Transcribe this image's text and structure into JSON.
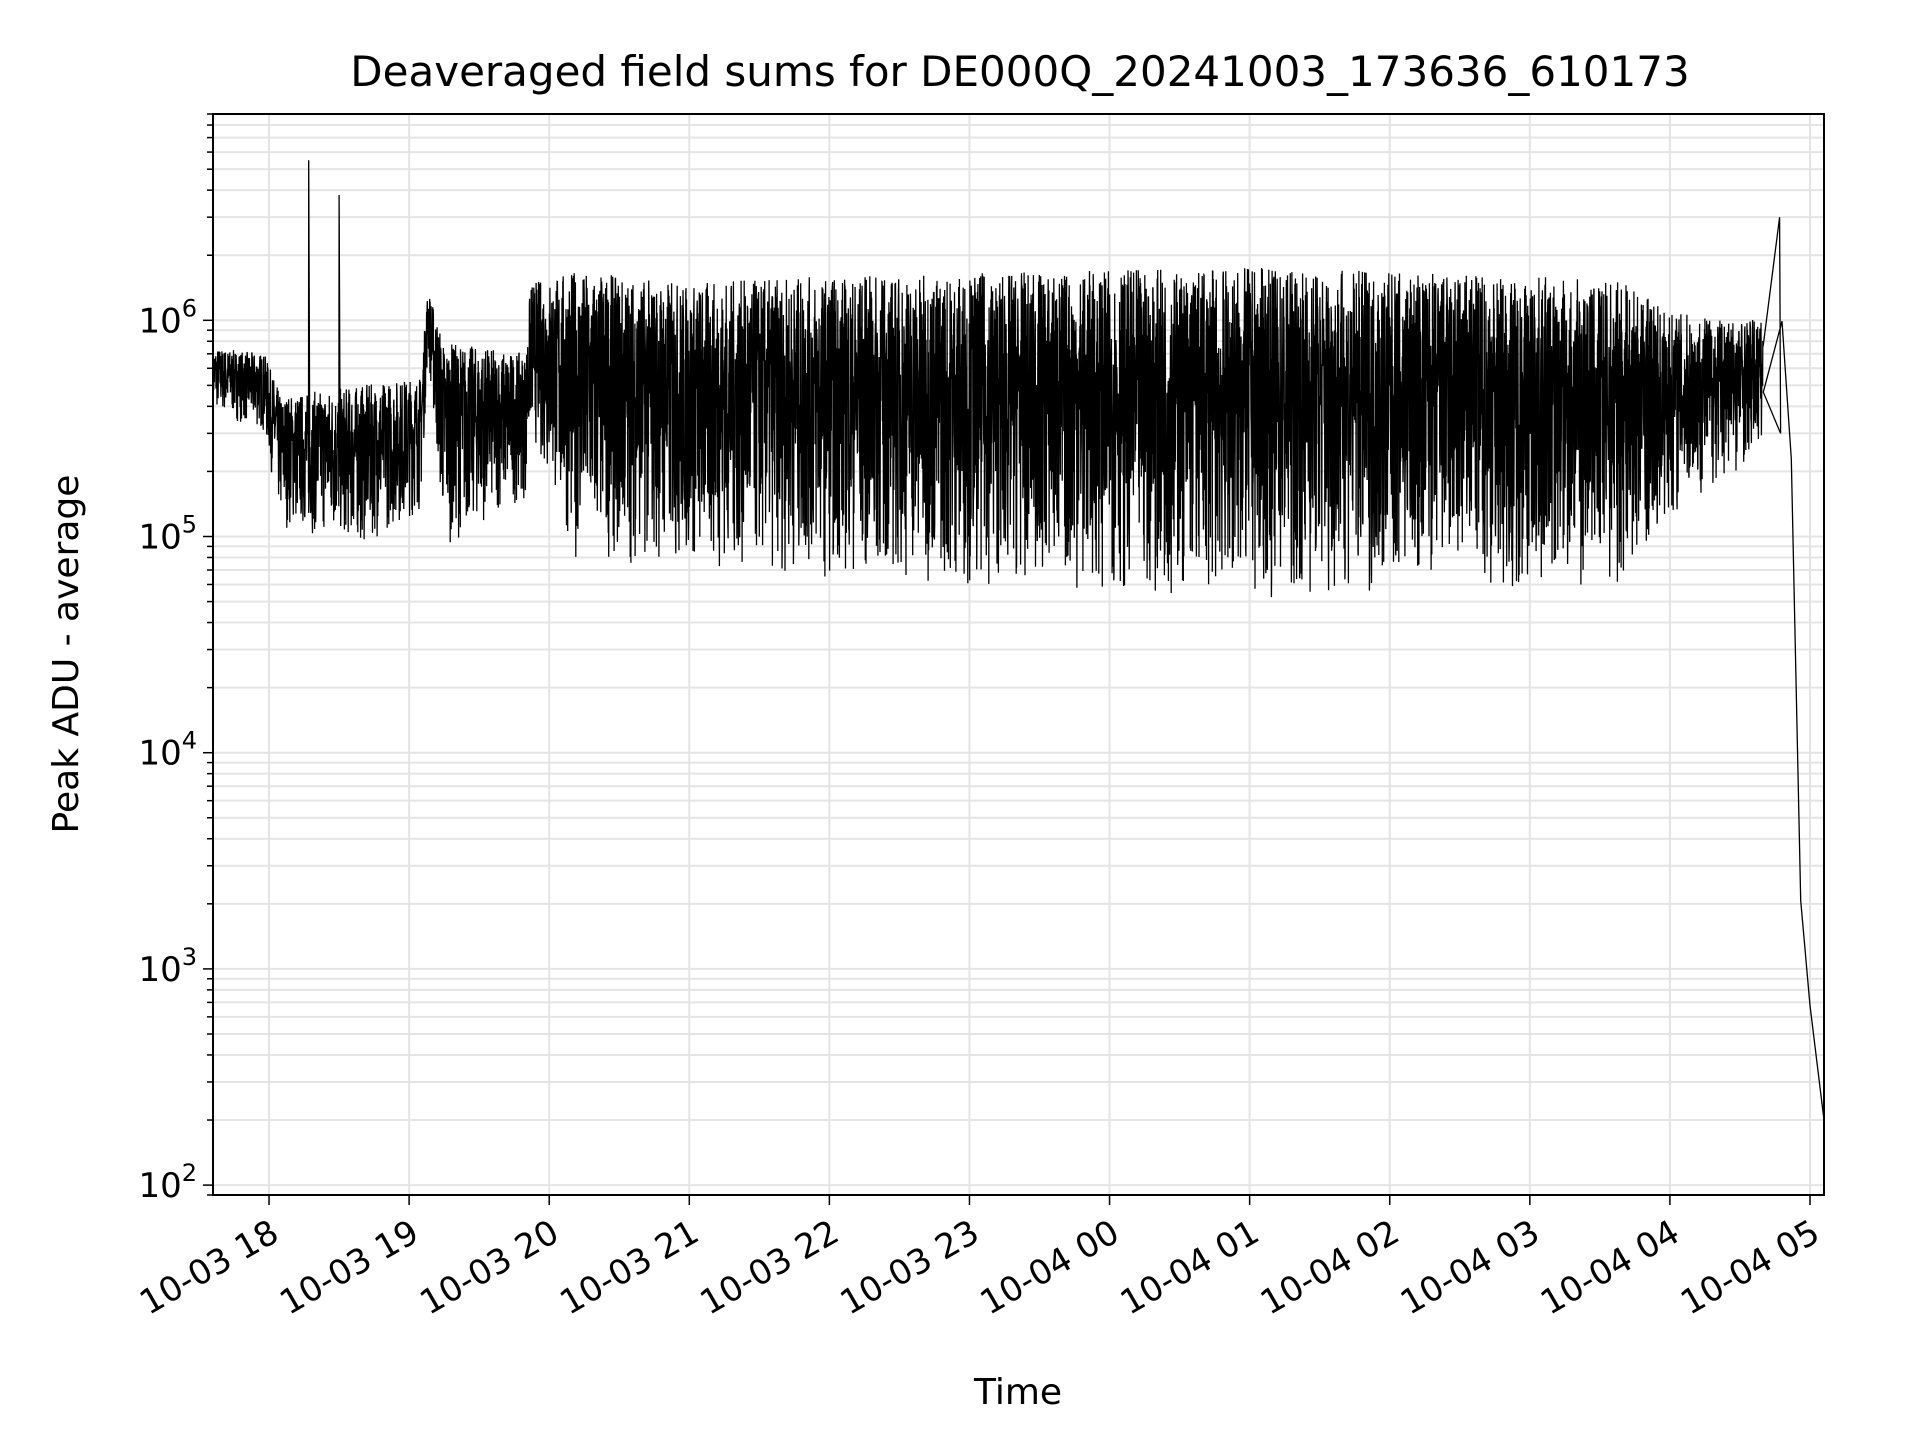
{
  "chart_data": {
    "type": "line",
    "title": "Deaveraged field sums for DE000Q_20241003_173636_610173",
    "xlabel": "Time",
    "ylabel": "Peak ADU - average",
    "x_axis": {
      "type": "datetime",
      "range": [
        "2024-10-03 17:36",
        "2024-10-04 05:06"
      ],
      "ticks": [
        "10-03 18",
        "10-03 19",
        "10-03 20",
        "10-03 21",
        "10-03 22",
        "10-03 23",
        "10-04 00",
        "10-04 01",
        "10-04 02",
        "10-04 03",
        "10-04 04",
        "10-04 05"
      ]
    },
    "y_axis": {
      "scale": "log",
      "range": [
        90,
        9000000
      ],
      "ticks": [
        {
          "base": "10",
          "exp": "2"
        },
        {
          "base": "10",
          "exp": "3"
        },
        {
          "base": "10",
          "exp": "4"
        },
        {
          "base": "10",
          "exp": "5"
        },
        {
          "base": "10",
          "exp": "6"
        }
      ]
    },
    "grid": true,
    "line_color": "#000000",
    "series": [
      {
        "x": [
          "2024-10-03 17:36",
          "2024-10-03 17:55",
          "2024-10-03 18:00",
          "2024-10-03 18:20",
          "2024-10-03 18:40",
          "2024-10-03 19:00",
          "2024-10-03 19:08",
          "2024-10-03 19:30",
          "2024-10-03 19:50",
          "2024-10-03 20:00",
          "2024-10-03 20:30",
          "2024-10-03 21:00",
          "2024-10-03 22:00",
          "2024-10-03 23:00",
          "2024-10-04 00:00",
          "2024-10-04 01:00",
          "2024-10-04 02:00",
          "2024-10-04 03:00",
          "2024-10-04 04:00",
          "2024-10-04 04:40",
          "2024-10-04 04:48",
          "2024-10-04 04:52",
          "2024-10-04 04:56",
          "2024-10-04 05:00",
          "2024-10-04 05:06"
        ],
        "y": [
          500000,
          600000,
          300000,
          220000,
          250000,
          320000,
          1000000,
          500000,
          450000,
          1000000,
          1000000,
          700000,
          600000,
          450000,
          400000,
          380000,
          350000,
          360000,
          400000,
          800000,
          1000000,
          200000,
          2000,
          700,
          200
        ]
      }
    ],
    "spikes": [
      {
        "x": "2024-10-03 18:17",
        "y": 5500000
      },
      {
        "x": "2024-10-03 18:30",
        "y": 3800000
      },
      {
        "x": "2024-10-04 04:47",
        "y": 3000000
      }
    ],
    "oscillation_band": [
      {
        "x": "2024-10-03 17:36",
        "low": 380000,
        "high": 750000
      },
      {
        "x": "2024-10-03 17:58",
        "low": 300000,
        "high": 700000
      },
      {
        "x": "2024-10-03 18:05",
        "low": 110000,
        "high": 450000
      },
      {
        "x": "2024-10-03 18:40",
        "low": 90000,
        "high": 500000
      },
      {
        "x": "2024-10-03 19:05",
        "low": 130000,
        "high": 550000
      },
      {
        "x": "2024-10-03 19:08",
        "low": 700000,
        "high": 1400000
      },
      {
        "x": "2024-10-03 19:15",
        "low": 90000,
        "high": 800000
      },
      {
        "x": "2024-10-03 19:50",
        "low": 150000,
        "high": 700000
      },
      {
        "x": "2024-10-03 19:52",
        "low": 300000,
        "high": 1500000
      },
      {
        "x": "2024-10-03 20:10",
        "low": 80000,
        "high": 1700000
      },
      {
        "x": "2024-10-03 21:00",
        "low": 70000,
        "high": 1500000
      },
      {
        "x": "2024-10-03 22:00",
        "low": 65000,
        "high": 1600000
      },
      {
        "x": "2024-10-03 23:00",
        "low": 60000,
        "high": 1650000
      },
      {
        "x": "2024-10-04 00:00",
        "low": 55000,
        "high": 1700000
      },
      {
        "x": "2024-10-04 01:00",
        "low": 52000,
        "high": 1750000
      },
      {
        "x": "2024-10-04 02:00",
        "low": 55000,
        "high": 1700000
      },
      {
        "x": "2024-10-04 03:00",
        "low": 55000,
        "high": 1600000
      },
      {
        "x": "2024-10-04 03:40",
        "low": 60000,
        "high": 1500000
      },
      {
        "x": "2024-10-04 04:00",
        "low": 120000,
        "high": 1100000
      },
      {
        "x": "2024-10-04 04:40",
        "low": 250000,
        "high": 1000000
      }
    ]
  }
}
